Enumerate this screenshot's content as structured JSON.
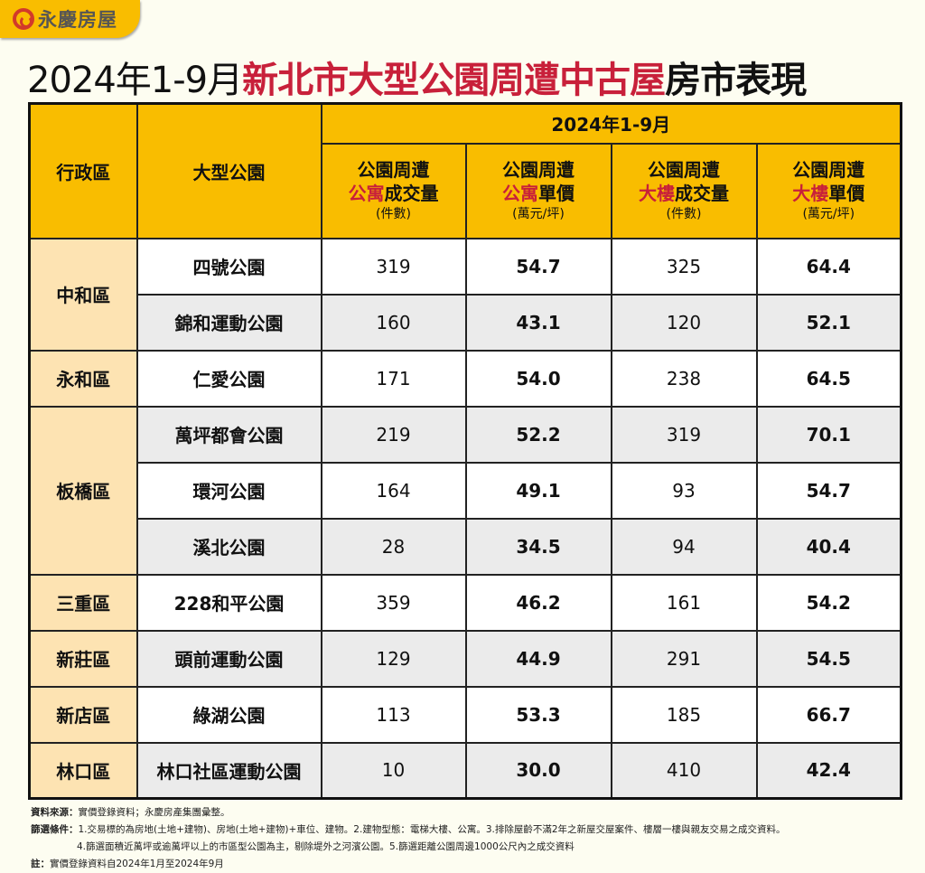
{
  "brand": {
    "logo_text": "永慶房屋",
    "accent": "#f9bd00",
    "red": "#c8203a"
  },
  "title": {
    "part1": "2024年1-9月",
    "part2": "新北市大型公園周遭中古屋",
    "part3": "房市表現"
  },
  "table": {
    "col_district": "行政區",
    "col_park": "大型公園",
    "period": "2024年1-9月",
    "columns": [
      {
        "line1": "公園周遭",
        "hl": "公寓",
        "rest": "成交量",
        "unit": "(件數)"
      },
      {
        "line1": "公園周遭",
        "hl": "公寓",
        "rest": "單價",
        "unit": "(萬元/坪)"
      },
      {
        "line1": "公園周遭",
        "hl": "大樓",
        "rest": "成交量",
        "unit": "(件數)"
      },
      {
        "line1": "公園周遭",
        "hl": "大樓",
        "rest": "單價",
        "unit": "(萬元/坪)"
      }
    ],
    "rows": [
      {
        "district": "中和區",
        "span": 2,
        "park": "四號公園",
        "v": [
          "319",
          "54.7",
          "325",
          "64.4"
        ]
      },
      {
        "district": null,
        "park": "錦和運動公園",
        "v": [
          "160",
          "43.1",
          "120",
          "52.1"
        ]
      },
      {
        "district": "永和區",
        "span": 1,
        "park": "仁愛公園",
        "v": [
          "171",
          "54.0",
          "238",
          "64.5"
        ]
      },
      {
        "district": "板橋區",
        "span": 3,
        "park": "萬坪都會公園",
        "v": [
          "219",
          "52.2",
          "319",
          "70.1"
        ]
      },
      {
        "district": null,
        "park": "環河公園",
        "v": [
          "164",
          "49.1",
          "93",
          "54.7"
        ]
      },
      {
        "district": null,
        "park": "溪北公園",
        "v": [
          "28",
          "34.5",
          "94",
          "40.4"
        ]
      },
      {
        "district": "三重區",
        "span": 1,
        "park": "228和平公園",
        "v": [
          "359",
          "46.2",
          "161",
          "54.2"
        ]
      },
      {
        "district": "新莊區",
        "span": 1,
        "park": "頭前運動公園",
        "v": [
          "129",
          "44.9",
          "291",
          "54.5"
        ]
      },
      {
        "district": "新店區",
        "span": 1,
        "park": "綠湖公園",
        "v": [
          "113",
          "53.3",
          "185",
          "66.7"
        ]
      },
      {
        "district": "林口區",
        "span": 1,
        "park": "林口社區運動公園",
        "v": [
          "10",
          "30.0",
          "410",
          "42.4"
        ]
      }
    ]
  },
  "notes": {
    "source_label": "資料來源：",
    "source": "實價登錄資料；永慶房產集團彙整。",
    "filter_label": "篩選條件：",
    "filter1": "1.交易標的為房地(土地+建物)、房地(土地+建物)+車位、建物。2.建物型態：電梯大樓、公寓。3.排除屋齡不滿2年之新屋交屋案件、樓層一樓與親友交易之成交資料。",
    "filter2": "4.篩選面積近萬坪或逾萬坪以上的市區型公園為主，剔除堤外之河濱公園。5.篩選距離公園周邊1000公尺內之成交資料",
    "note_label": "註：",
    "note": "實價登錄資料自2024年1月至2024年9月"
  }
}
